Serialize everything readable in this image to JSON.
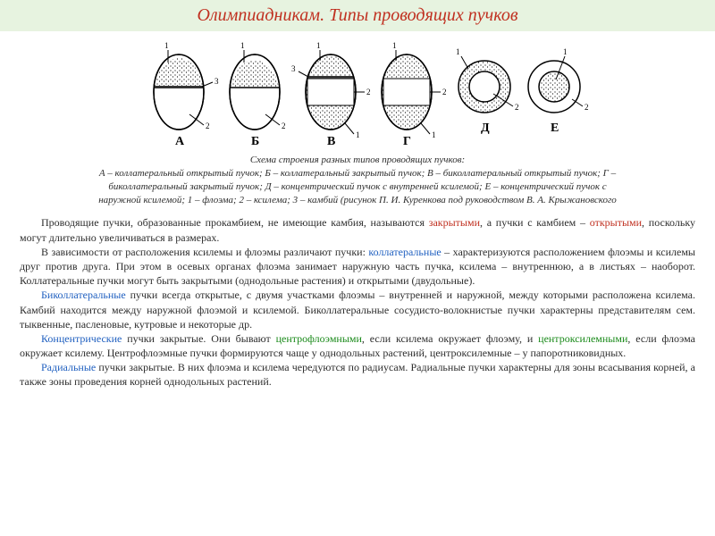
{
  "colors": {
    "header_bg": "#e7f3e0",
    "title": "#c03020",
    "text": "#2d2d2d",
    "accent_red": "#c03020",
    "accent_blue": "#2060c0",
    "accent_green": "#1a8a1a",
    "svg_stroke": "#000000",
    "svg_fill": "#ffffff",
    "cambium_fill": "#333333"
  },
  "title": "Олимпиадникам. Типы проводящих пучков",
  "diagram": {
    "labels": [
      "А",
      "Б",
      "В",
      "Г",
      "Д",
      "Е"
    ],
    "pointer_labels": [
      "1",
      "2",
      "3"
    ],
    "caption_title": "Схема строения разных типов проводящих пучков:",
    "caption_body": "А – коллатеральный открытый пучок; Б – коллатеральный закрытый пучок; В – биколлатеральный открытый пучок; Г – биколлатеральный закрытый пучок; Д – концентрический пучок с внутренней ксилемой; Е – концентрический пучок с наружной ксилемой; 1 – флоэма; 2 – ксилема; 3 – камбий (рисунок П. И. Куренкова под руководством В. А. Крыжановского"
  },
  "paragraphs": [
    {
      "spans": [
        {
          "t": "Проводящие пучки, образованные прокамбием, не имеющие камбия, называются "
        },
        {
          "t": "закрытыми",
          "c": "accent_red"
        },
        {
          "t": ", а пучки с камбием – "
        },
        {
          "t": "открытыми",
          "c": "accent_red"
        },
        {
          "t": ", поскольку могут длительно увеличиваться в размерах."
        }
      ]
    },
    {
      "spans": [
        {
          "t": "В зависимости от расположения ксилемы и флоэмы различают пучки: "
        },
        {
          "t": "коллатеральные",
          "c": "accent_blue"
        },
        {
          "t": " – характеризуются расположением флоэмы и ксилемы друг против друга. При этом в осевых органах флоэма занимает наружную часть пучка, ксилема – внутреннюю, а в листьях – наоборот. Коллатеральные пучки могут быть закрытыми (однодольные растения) и открытыми (двудольные)."
        }
      ]
    },
    {
      "spans": [
        {
          "t": "Биколлатеральные",
          "c": "accent_blue"
        },
        {
          "t": " пучки всегда открытые, с двумя участками флоэмы – внутренней и наружной, между которыми расположена ксилема. Камбий находится между наружной флоэмой и ксилемой. Биколлатеральные сосудисто-волокнистые пучки характерны представителям сем. тыквенные, пасленовые, кутровые и некоторые др."
        }
      ]
    },
    {
      "spans": [
        {
          "t": "Концентрические",
          "c": "accent_blue"
        },
        {
          "t": " пучки закрытые. Они бывают "
        },
        {
          "t": "центрофлоэмными",
          "c": "accent_green"
        },
        {
          "t": ", если ксилема окружает флоэму, и "
        },
        {
          "t": "центроксилемными",
          "c": "accent_green"
        },
        {
          "t": ", если флоэма окружает ксилему. Центрофлоэмные пучки формируются чаще у однодольных растений, центроксилемные – у папоротниковидных."
        }
      ]
    },
    {
      "spans": [
        {
          "t": "Радиальные",
          "c": "accent_blue"
        },
        {
          "t": " пучки закрытые. В них флоэма и ксилема чередуются по радиусам. Радиальные пучки характерны для зоны всасывания корней, а также зоны проведения корней однодольных растений."
        }
      ]
    }
  ]
}
